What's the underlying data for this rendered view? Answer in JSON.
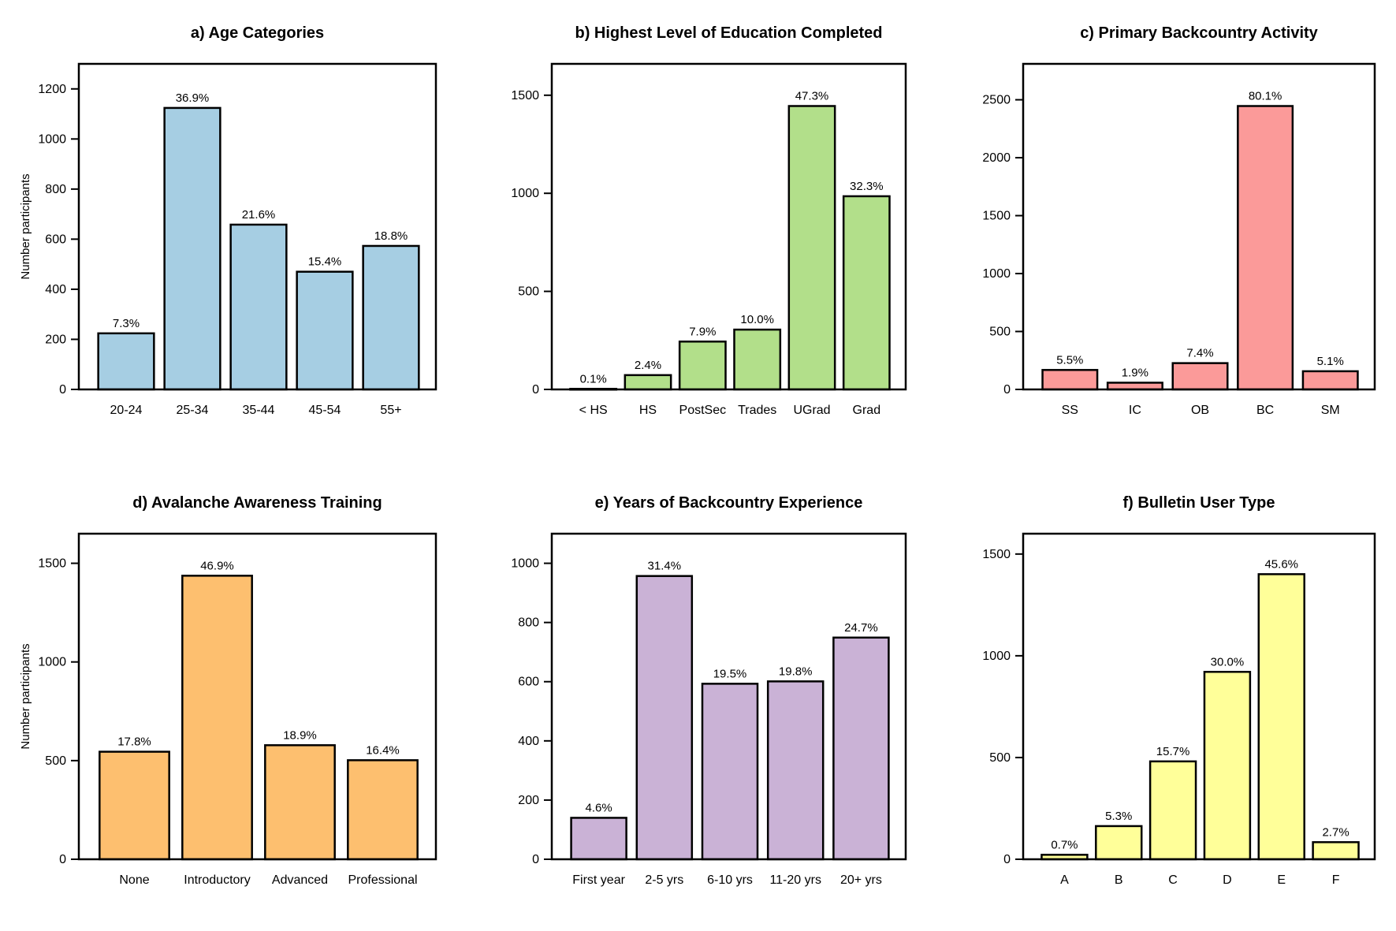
{
  "figure": {
    "background": "#ffffff"
  },
  "chart_data": [
    {
      "type": "bar",
      "title": "a) Age Categories",
      "ylabel": "Number participants",
      "xlabel": "",
      "categories": [
        "20-24",
        "25-34",
        "35-44",
        "45-54",
        "55+"
      ],
      "values": [
        224,
        1124,
        658,
        470,
        573
      ],
      "labels": [
        "7.3%",
        "36.9%",
        "21.6%",
        "15.4%",
        "18.8%"
      ],
      "ylim": [
        0,
        1300
      ],
      "yticks": [
        0,
        200,
        400,
        600,
        800,
        1000,
        1200
      ],
      "color": "#a6cee3"
    },
    {
      "type": "bar",
      "title": "b) Highest Level of Education Completed",
      "ylabel": "",
      "xlabel": "",
      "categories": [
        "< HS",
        "HS",
        "PostSec",
        "Trades",
        "UGrad",
        "Grad"
      ],
      "values": [
        3,
        73,
        244,
        305,
        1445,
        985
      ],
      "labels": [
        "0.1%",
        "2.4%",
        "7.9%",
        "10.0%",
        "47.3%",
        "32.3%"
      ],
      "ylim": [
        0,
        1660
      ],
      "yticks": [
        0,
        500,
        1000,
        1500
      ],
      "color": "#b2df8a"
    },
    {
      "type": "bar",
      "title": "c) Primary Backcountry Activity",
      "ylabel": "",
      "xlabel": "",
      "categories": [
        "SS",
        "IC",
        "OB",
        "BC",
        "SM"
      ],
      "values": [
        168,
        58,
        227,
        2446,
        157
      ],
      "labels": [
        "5.5%",
        "1.9%",
        "7.4%",
        "80.1%",
        "5.1%"
      ],
      "ylim": [
        0,
        2810
      ],
      "yticks": [
        0,
        500,
        1000,
        1500,
        2000,
        2500
      ],
      "color": "#fb9a99"
    },
    {
      "type": "bar",
      "title": "d) Avalanche Awareness Training",
      "ylabel": "Number participants",
      "xlabel": "",
      "categories": [
        "None",
        "Introductory",
        "Advanced",
        "Professional"
      ],
      "values": [
        545,
        1437,
        578,
        502
      ],
      "labels": [
        "17.8%",
        "46.9%",
        "18.9%",
        "16.4%"
      ],
      "ylim": [
        0,
        1650
      ],
      "yticks": [
        0,
        500,
        1000,
        1500
      ],
      "color": "#fdbf6f"
    },
    {
      "type": "bar",
      "title": "e) Years of Backcountry Experience",
      "ylabel": "",
      "xlabel": "",
      "categories": [
        "First year",
        "2-5 yrs",
        "6-10 yrs",
        "11-20 yrs",
        "20+ yrs"
      ],
      "values": [
        140,
        957,
        593,
        601,
        749
      ],
      "labels": [
        "4.6%",
        "31.4%",
        "19.5%",
        "19.8%",
        "24.7%"
      ],
      "ylim": [
        0,
        1100
      ],
      "yticks": [
        0,
        200,
        400,
        600,
        800,
        1000
      ],
      "color": "#cab2d6"
    },
    {
      "type": "bar",
      "title": "f) Bulletin User Type",
      "ylabel": "",
      "xlabel": "",
      "categories": [
        "A",
        "B",
        "C",
        "D",
        "E",
        "F"
      ],
      "values": [
        22,
        163,
        481,
        921,
        1401,
        84
      ],
      "labels": [
        "0.7%",
        "5.3%",
        "15.7%",
        "30.0%",
        "45.6%",
        "2.7%"
      ],
      "ylim": [
        0,
        1600
      ],
      "yticks": [
        0,
        500,
        1000,
        1500
      ],
      "color": "#ffff99"
    }
  ]
}
